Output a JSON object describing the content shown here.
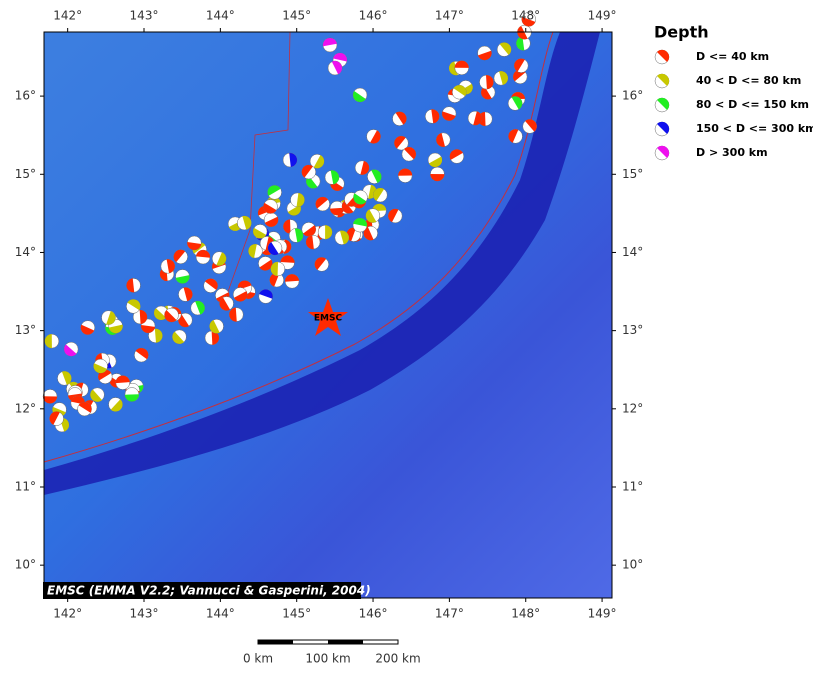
{
  "map": {
    "lon_range": [
      141.69,
      149.13
    ],
    "lat_range": [
      9.58,
      16.82
    ],
    "lon_ticks": [
      {
        "value": 142,
        "label": "142°"
      },
      {
        "value": 143,
        "label": "143°"
      },
      {
        "value": 144,
        "label": "144°"
      },
      {
        "value": 145,
        "label": "145°"
      },
      {
        "value": 146,
        "label": "146°"
      },
      {
        "value": 147,
        "label": "147°"
      },
      {
        "value": 148,
        "label": "148°"
      },
      {
        "value": 149,
        "label": "149°"
      }
    ],
    "lat_ticks": [
      {
        "value": 10,
        "label": "10°"
      },
      {
        "value": 11,
        "label": "11°"
      },
      {
        "value": 12,
        "label": "12°"
      },
      {
        "value": 13,
        "label": "13°"
      },
      {
        "value": 14,
        "label": "14°"
      },
      {
        "value": 15,
        "label": "15°"
      },
      {
        "value": 16,
        "label": "16°"
      }
    ],
    "legend": {
      "title": "Depth",
      "entries": [
        {
          "label": "D <= 40 km",
          "color": "#ff2a00"
        },
        {
          "label": "40 < D <= 80 km",
          "color": "#c8c800"
        },
        {
          "label": "80 < D <= 150 km",
          "color": "#22ee22"
        },
        {
          "label": "150 < D <= 300 km",
          "color": "#1010ee"
        },
        {
          "label": "D > 300 km",
          "color": "#ee10ee"
        }
      ]
    },
    "marker_label": "EMSC",
    "credit": "EMSC (EMMA V2.2; Vannucci & Gasperini, 2004)",
    "scale_bar": [
      "0 km",
      "100 km",
      "200 km"
    ]
  }
}
